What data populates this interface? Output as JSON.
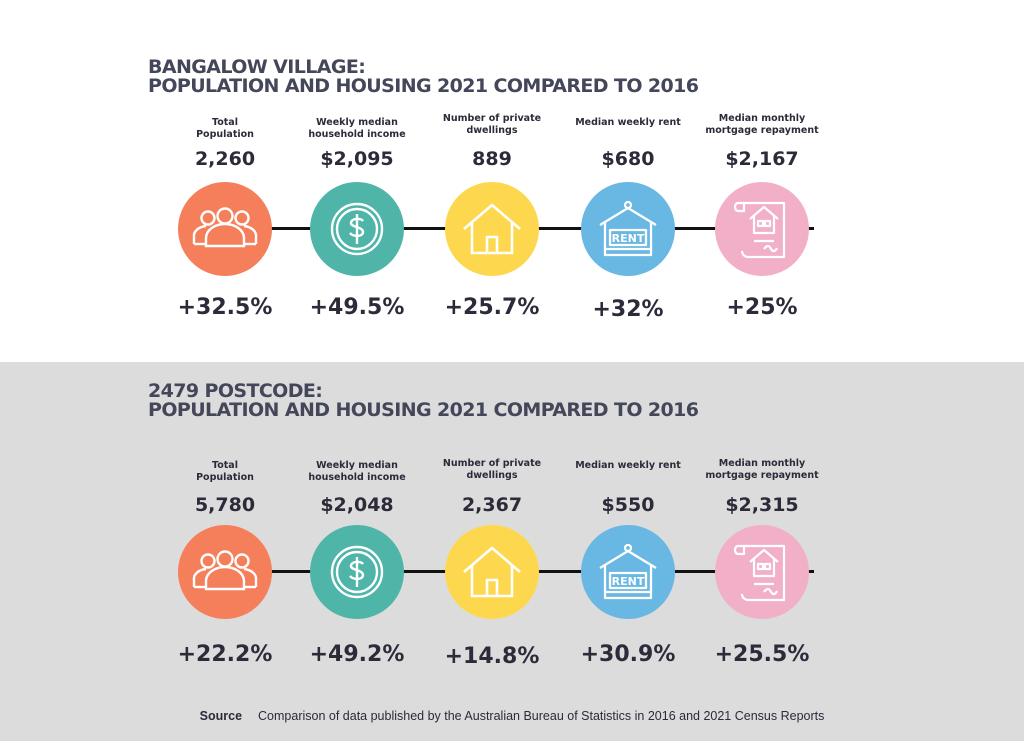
{
  "sections": [
    {
      "title_line1": "BANGALOW VILLAGE:",
      "title_line2": "POPULATION AND HOUSING 2021 COMPARED TO 2016",
      "items": [
        {
          "label_line1": "Total",
          "label_line2": "Population",
          "value": "2,260",
          "change": "+32.5%",
          "color": "#f47f5a",
          "icon": "people-icon"
        },
        {
          "label_line1": "Weekly median",
          "label_line2": "household income",
          "value": "$2,095",
          "change": "+49.5%",
          "color": "#4fb5a8",
          "icon": "dollar-coin-icon"
        },
        {
          "label_line1": "Number of private",
          "label_line2": "dwellings",
          "value": "889",
          "change": "+25.7%",
          "color": "#fdd84e",
          "icon": "house-icon"
        },
        {
          "label_line1": "Median weekly rent",
          "label_line2": "",
          "value": "$680",
          "change": "+32%",
          "color": "#69b7e3",
          "icon": "rent-sign-icon"
        },
        {
          "label_line1": "Median monthly",
          "label_line2": "mortgage repayment",
          "value": "$2,167",
          "change": "+25%",
          "color": "#f2afc8",
          "icon": "mortgage-document-icon"
        }
      ]
    },
    {
      "title_line1": "2479 POSTCODE:",
      "title_line2": "POPULATION AND HOUSING 2021 COMPARED TO 2016",
      "items": [
        {
          "label_line1": "Total",
          "label_line2": "Population",
          "value": "5,780",
          "change": "+22.2%",
          "color": "#f47f5a",
          "icon": "people-icon"
        },
        {
          "label_line1": "Weekly median",
          "label_line2": "household income",
          "value": "$2,048",
          "change": "+49.2%",
          "color": "#4fb5a8",
          "icon": "dollar-coin-icon"
        },
        {
          "label_line1": "Number of private",
          "label_line2": "dwellings",
          "value": "2,367",
          "change": "+14.8%",
          "color": "#fdd84e",
          "icon": "house-icon"
        },
        {
          "label_line1": "Median weekly rent",
          "label_line2": "",
          "value": "$550",
          "change": "+30.9%",
          "color": "#69b7e3",
          "icon": "rent-sign-icon"
        },
        {
          "label_line1": "Median monthly",
          "label_line2": "mortgage repayment",
          "value": "$2,315",
          "change": "+25.5%",
          "color": "#f2afc8",
          "icon": "mortgage-document-icon"
        }
      ]
    }
  ],
  "rent_sign_text": "RENT",
  "source": {
    "label": "Source",
    "text": "Comparison of data published by the Australian Bureau of Statistics in 2016 and 2021 Census Reports"
  }
}
